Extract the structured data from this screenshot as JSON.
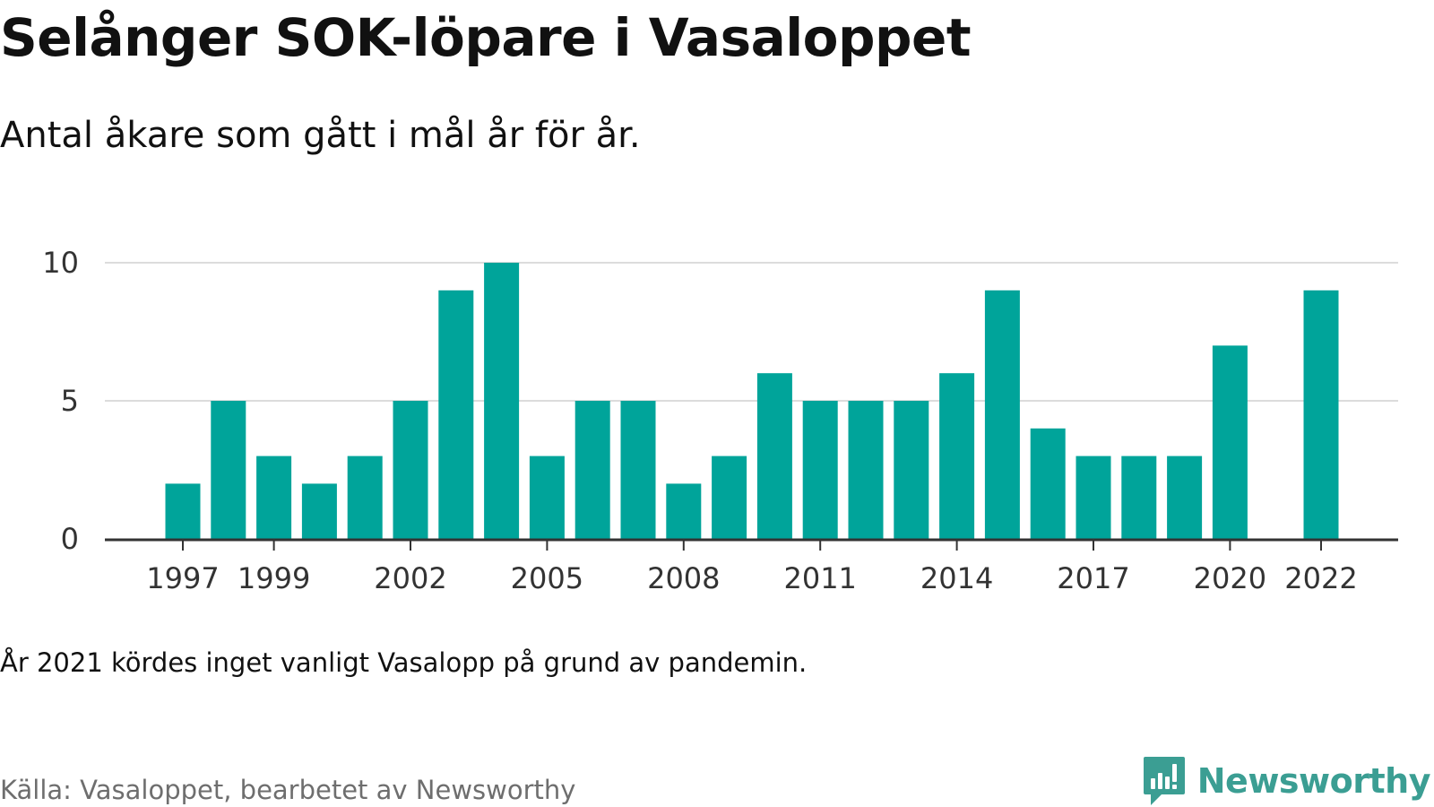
{
  "header": {
    "title": "Selånger SOK-löpare i Vasaloppet",
    "subtitle": "Antal åkare som gått i mål år för år."
  },
  "footer": {
    "note": "År 2021 kördes inget vanligt Vasalopp på grund av pandemin.",
    "source": "Källa: Vasaloppet, bearbetet av Newsworthy",
    "brand": "Newsworthy",
    "brand_icon": "newsworthy-logo-icon"
  },
  "colors": {
    "bar": "#00a49a",
    "grid": "#dcdcdc",
    "axis": "#333333",
    "tick_text": "#333333",
    "brand": "#3b9e93"
  },
  "chart_data": {
    "type": "bar",
    "title": "Selånger SOK-löpare i Vasaloppet",
    "subtitle": "Antal åkare som gått i mål år för år.",
    "xlabel": "",
    "ylabel": "",
    "x": [
      1997,
      1998,
      1999,
      2000,
      2001,
      2002,
      2003,
      2004,
      2005,
      2006,
      2007,
      2008,
      2009,
      2010,
      2011,
      2012,
      2013,
      2014,
      2015,
      2016,
      2017,
      2018,
      2019,
      2020,
      2022
    ],
    "values": [
      2,
      5,
      3,
      2,
      3,
      5,
      9,
      10,
      3,
      5,
      5,
      2,
      3,
      6,
      5,
      5,
      5,
      6,
      9,
      4,
      3,
      3,
      3,
      7,
      9
    ],
    "x_ticks": [
      1997,
      1999,
      2002,
      2005,
      2008,
      2011,
      2014,
      2017,
      2020,
      2022
    ],
    "y_ticks": [
      0,
      5,
      10
    ],
    "ylim": [
      0,
      10
    ],
    "xlim": [
      1996,
      2024
    ],
    "grid": true,
    "legend": false
  }
}
